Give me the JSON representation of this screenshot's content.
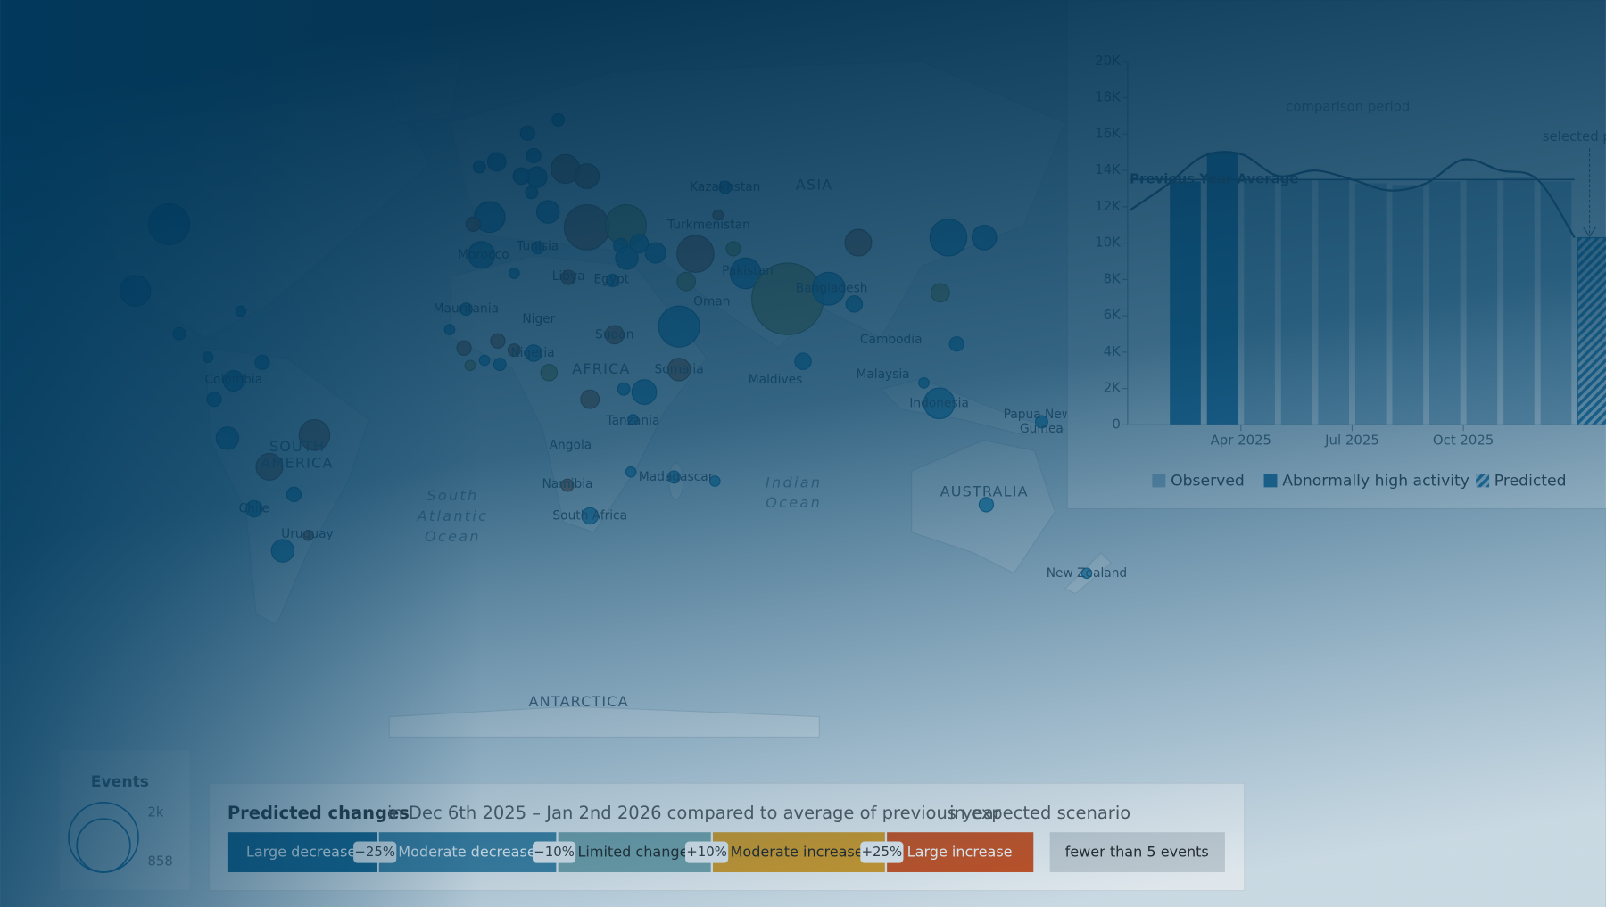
{
  "map": {
    "labels": [
      "Kazakhstan",
      "ASIA",
      "Turkmenistan",
      "Tunisia",
      "Morocco",
      "Libya",
      "Egypt",
      "Pakistan",
      "Bangladesh",
      "Oman",
      "Mauritania",
      "Niger",
      "Sudan",
      "Nigeria",
      "AFRICA",
      "Somalia",
      "Maldives",
      "Cambodia",
      "Malaysia",
      "Indonesia",
      "Papua New",
      "Guinea",
      "Tanzania",
      "Angola",
      "Madagascar",
      "Namibia",
      "South Africa",
      "AUSTRALIA",
      "New Zealand",
      "Colombia",
      "SOUTH",
      "AMERICA",
      "Chile",
      "Uruguay",
      "South",
      "Atlantic",
      "Ocean",
      "Indian",
      "Ocean",
      "ANTARCTICA"
    ],
    "events_legend": {
      "title": "Events",
      "sizes": [
        "2k",
        "858"
      ]
    }
  },
  "chart_data": {
    "type": "bar",
    "annotations": [
      "comparison period",
      "selected period"
    ],
    "categories": [
      null,
      null,
      null,
      "Apr 2025",
      null,
      null,
      "Jul 2025",
      null,
      null,
      "Oct 2025",
      null,
      null,
      null
    ],
    "series": [
      {
        "name": "Observed",
        "color": "#a7c3d3",
        "values": [
          null,
          null,
          null,
          13500,
          13500,
          13500,
          13300,
          13200,
          13400,
          13500,
          13600,
          13400,
          null
        ]
      },
      {
        "name": "Abnormally high activity",
        "color": "#2376a4",
        "values": [
          null,
          13400,
          15000,
          null,
          null,
          null,
          null,
          null,
          null,
          null,
          null,
          null,
          null
        ]
      },
      {
        "name": "Predicted",
        "color": "#2376a4",
        "values": [
          null,
          null,
          null,
          null,
          null,
          null,
          null,
          null,
          null,
          null,
          null,
          null,
          10300
        ]
      }
    ],
    "line_values": [
      11800,
      13200,
      14800,
      14900,
      13700,
      14000,
      13500,
      12900,
      13300,
      14600,
      14000,
      13500,
      10300
    ],
    "reference_line": {
      "label": "Previous Year Average",
      "value": 13500
    },
    "ylim": [
      0,
      20000
    ],
    "yticks": [
      0,
      {
        "value": 2000,
        "label": "2K"
      },
      {
        "value": 4000,
        "label": "4K"
      },
      {
        "value": 6000,
        "label": "6K"
      },
      {
        "value": 8000,
        "label": "8K"
      },
      {
        "value": 10000,
        "label": "10K"
      },
      {
        "value": 12000,
        "label": "12K"
      },
      {
        "value": 14000,
        "label": "14K"
      },
      {
        "value": 16000,
        "label": "16K"
      },
      {
        "value": 18000,
        "label": "18K"
      },
      {
        "value": 20000,
        "label": "20K"
      }
    ]
  },
  "changes_legend": {
    "title": "Predicted changes",
    "subtitle": "in Dec 6th 2025 – Jan 2nd 2026 compared to average of previous year",
    "scenario": "in expected scenario",
    "categories": [
      {
        "label": "Large decrease",
        "color": "#0f5f88"
      },
      {
        "label": "Moderate decrease",
        "color": "#3a7f9f"
      },
      {
        "label": "Limited change",
        "color": "#76a3a8"
      },
      {
        "label": "Moderate increase",
        "color": "#d99a1e"
      },
      {
        "label": "Large increase",
        "color": "#cf4d18"
      }
    ],
    "thresholds": [
      "−25%",
      "−10%",
      "+10%",
      "+25%"
    ],
    "no_data": "fewer than 5 events"
  }
}
